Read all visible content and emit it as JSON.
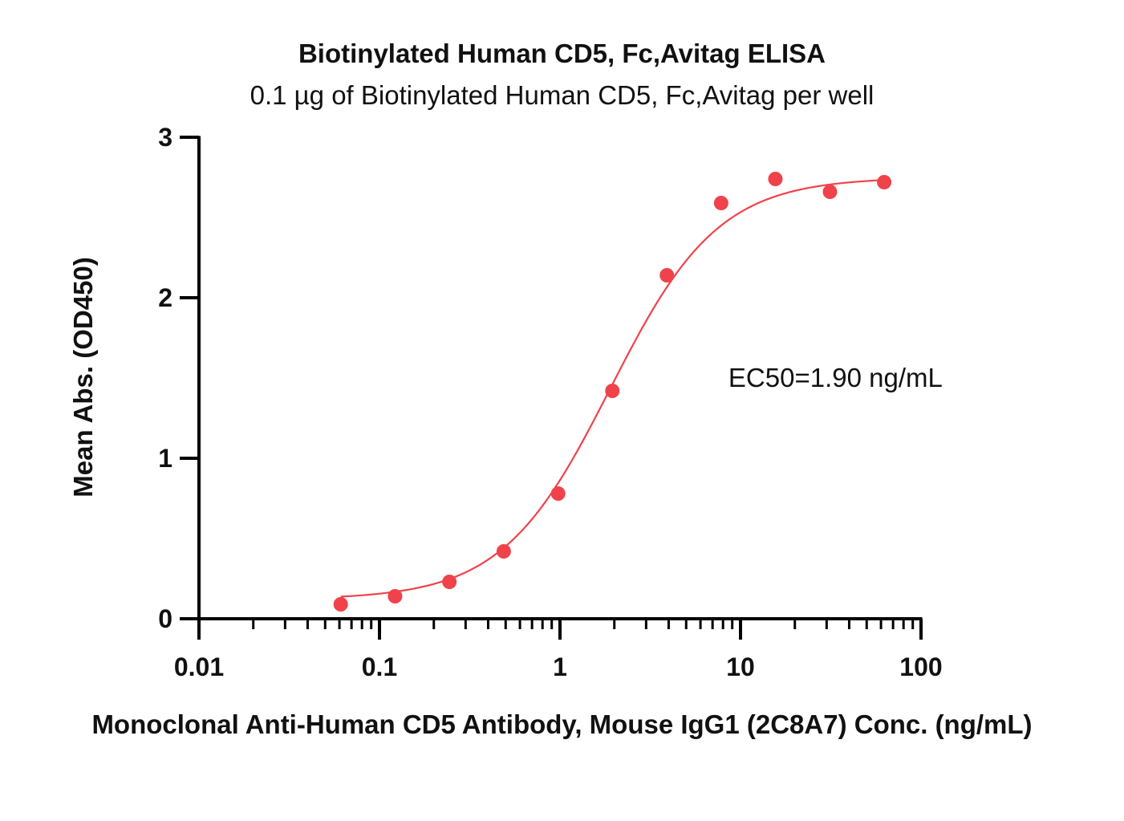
{
  "chart_data": {
    "type": "scatter",
    "title": "Biotinylated Human CD5, Fc,Avitag ELISA",
    "subtitle": "0.1 µg of Biotinylated Human CD5, Fc,Avitag per well",
    "xlabel": "Monoclonal Anti-Human CD5 Antibody, Mouse IgG1 (2C8A7) Conc. (ng/mL)",
    "ylabel": "Mean Abs. (OD450)",
    "x_scale": "log",
    "xlim": [
      0.01,
      100
    ],
    "ylim": [
      0,
      3
    ],
    "x_ticks": [
      0.01,
      0.1,
      1,
      10,
      100
    ],
    "x_tick_labels": [
      "0.01",
      "0.1",
      "1",
      "10",
      "100"
    ],
    "y_ticks": [
      0,
      1,
      2,
      3
    ],
    "y_tick_labels": [
      "0",
      "1",
      "2",
      "3"
    ],
    "grid": false,
    "series": [
      {
        "color": "#f0424a",
        "x": [
          0.061,
          0.122,
          0.244,
          0.488,
          0.977,
          1.95,
          3.91,
          7.81,
          15.6,
          31.3,
          62.5
        ],
        "y": [
          0.09,
          0.14,
          0.23,
          0.42,
          0.78,
          1.42,
          2.14,
          2.59,
          2.74,
          2.66,
          2.72
        ]
      }
    ],
    "fit_curve": {
      "color": "#f0424a",
      "model": "4PL",
      "bottom": 0.12,
      "top": 2.75,
      "ec50": 1.9,
      "hill": 1.45
    },
    "annotations": [
      {
        "text": "EC50=1.90 ng/mL",
        "x": 16,
        "y": 1.5
      }
    ]
  }
}
